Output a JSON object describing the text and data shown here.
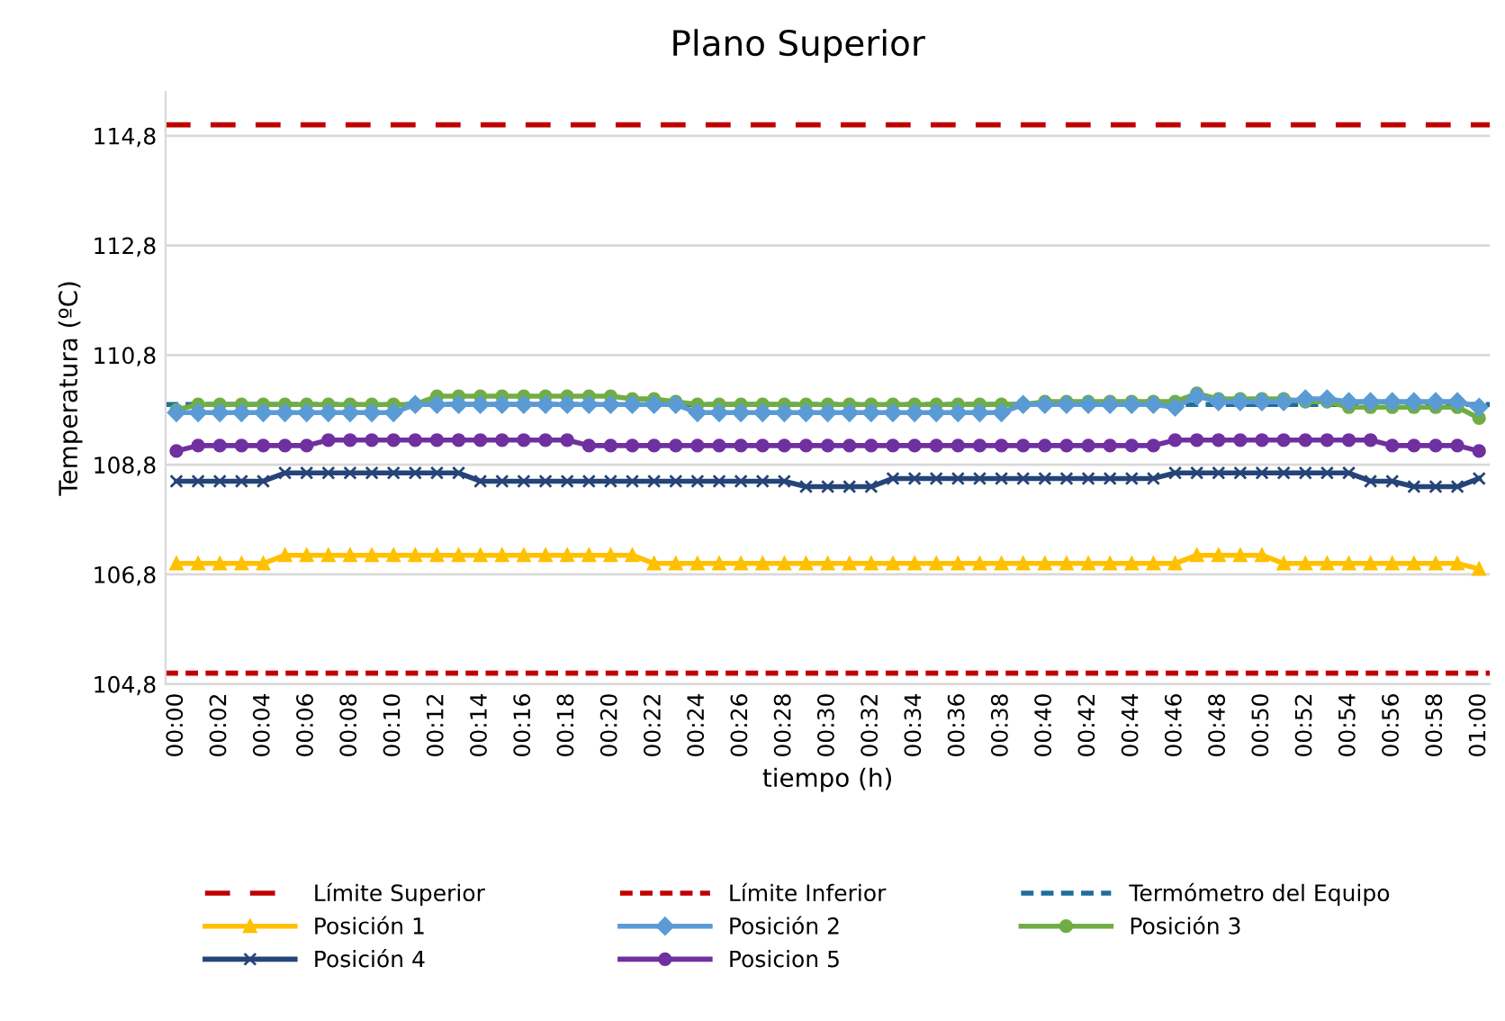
{
  "chart_data": {
    "type": "line",
    "title": "Plano Superior",
    "xlabel": "tiempo (h)",
    "ylabel": "Temperatura (ºC)",
    "categories": [
      "00:00",
      null,
      "00:02",
      null,
      "00:04",
      null,
      "00:06",
      null,
      "00:08",
      null,
      "00:10",
      null,
      "00:12",
      null,
      "00:14",
      null,
      "00:16",
      null,
      "00:18",
      null,
      "00:20",
      null,
      "00:22",
      null,
      "00:24",
      null,
      "00:26",
      null,
      "00:28",
      null,
      "00:30",
      null,
      "00:32",
      null,
      "00:34",
      null,
      "00:36",
      null,
      "00:38",
      null,
      "00:40",
      null,
      "00:42",
      null,
      "00:44",
      null,
      "00:46",
      null,
      "00:48",
      null,
      "00:50",
      null,
      "00:52",
      null,
      "00:54",
      null,
      "00:56",
      null,
      "00:58",
      null,
      "01:00"
    ],
    "ylim": [
      104.8,
      115.6
    ],
    "yticks": [
      {
        "value": 104.8,
        "label": "104,8"
      },
      {
        "value": 106.8,
        "label": "106,8"
      },
      {
        "value": 108.8,
        "label": "108,8"
      },
      {
        "value": 110.8,
        "label": "110,8"
      },
      {
        "value": 112.8,
        "label": "112,8"
      },
      {
        "value": 114.8,
        "label": "114,8"
      }
    ],
    "grid": "y",
    "legend": "bottom",
    "ref_lines": [
      {
        "axis": "y",
        "value": 115.0,
        "label": "Límite Superior",
        "color": "#c00000",
        "line_style": "dashed"
      },
      {
        "axis": "y",
        "value": 105.0,
        "label": "Límite Inferior",
        "color": "#c00000",
        "line_style": "dotted"
      },
      {
        "axis": "y",
        "value": 109.9,
        "label": "Termómetro del Equipo",
        "color": "#1f6e9c",
        "line_style": "dotted"
      }
    ],
    "series": [
      {
        "name": "Posición 1",
        "color": "#ffc000",
        "marker": "triangle",
        "values": [
          107.0,
          107.0,
          107.0,
          107.0,
          107.0,
          107.15,
          107.15,
          107.15,
          107.15,
          107.15,
          107.15,
          107.15,
          107.15,
          107.15,
          107.15,
          107.15,
          107.15,
          107.15,
          107.15,
          107.15,
          107.15,
          107.15,
          107.0,
          107.0,
          107.0,
          107.0,
          107.0,
          107.0,
          107.0,
          107.0,
          107.0,
          107.0,
          107.0,
          107.0,
          107.0,
          107.0,
          107.0,
          107.0,
          107.0,
          107.0,
          107.0,
          107.0,
          107.0,
          107.0,
          107.0,
          107.0,
          107.0,
          107.15,
          107.15,
          107.15,
          107.15,
          107.0,
          107.0,
          107.0,
          107.0,
          107.0,
          107.0,
          107.0,
          107.0,
          107.0,
          106.9
        ]
      },
      {
        "name": "Posición 2",
        "color": "#5b9bd5",
        "marker": "diamond",
        "values": [
          109.75,
          109.75,
          109.75,
          109.75,
          109.75,
          109.75,
          109.75,
          109.75,
          109.75,
          109.75,
          109.75,
          109.9,
          109.9,
          109.9,
          109.9,
          109.9,
          109.9,
          109.9,
          109.9,
          109.9,
          109.9,
          109.9,
          109.9,
          109.9,
          109.75,
          109.75,
          109.75,
          109.75,
          109.75,
          109.75,
          109.75,
          109.75,
          109.75,
          109.75,
          109.75,
          109.75,
          109.75,
          109.75,
          109.75,
          109.9,
          109.9,
          109.9,
          109.9,
          109.9,
          109.9,
          109.9,
          109.85,
          110.05,
          109.95,
          109.95,
          109.95,
          109.95,
          110.0,
          110.0,
          109.95,
          109.95,
          109.95,
          109.95,
          109.95,
          109.95,
          109.85
        ]
      },
      {
        "name": "Posición 3",
        "color": "#70ad47",
        "marker": "circle",
        "values": [
          109.8,
          109.9,
          109.9,
          109.9,
          109.9,
          109.9,
          109.9,
          109.9,
          109.9,
          109.9,
          109.9,
          109.9,
          110.05,
          110.05,
          110.05,
          110.05,
          110.05,
          110.05,
          110.05,
          110.05,
          110.05,
          110.0,
          110.0,
          109.95,
          109.9,
          109.9,
          109.9,
          109.9,
          109.9,
          109.9,
          109.9,
          109.9,
          109.9,
          109.9,
          109.9,
          109.9,
          109.9,
          109.9,
          109.9,
          109.9,
          109.95,
          109.95,
          109.95,
          109.95,
          109.95,
          109.95,
          109.95,
          110.1,
          110.0,
          110.0,
          110.0,
          110.0,
          109.95,
          109.95,
          109.85,
          109.85,
          109.85,
          109.85,
          109.85,
          109.85,
          109.65
        ]
      },
      {
        "name": "Posición 4",
        "color": "#264478",
        "marker": "cross",
        "values": [
          108.5,
          108.5,
          108.5,
          108.5,
          108.5,
          108.65,
          108.65,
          108.65,
          108.65,
          108.65,
          108.65,
          108.65,
          108.65,
          108.65,
          108.5,
          108.5,
          108.5,
          108.5,
          108.5,
          108.5,
          108.5,
          108.5,
          108.5,
          108.5,
          108.5,
          108.5,
          108.5,
          108.5,
          108.5,
          108.4,
          108.4,
          108.4,
          108.4,
          108.55,
          108.55,
          108.55,
          108.55,
          108.55,
          108.55,
          108.55,
          108.55,
          108.55,
          108.55,
          108.55,
          108.55,
          108.55,
          108.65,
          108.65,
          108.65,
          108.65,
          108.65,
          108.65,
          108.65,
          108.65,
          108.65,
          108.5,
          108.5,
          108.4,
          108.4,
          108.4,
          108.55
        ]
      },
      {
        "name": "Posicion 5",
        "color": "#7030a0",
        "marker": "circle",
        "values": [
          109.05,
          109.15,
          109.15,
          109.15,
          109.15,
          109.15,
          109.15,
          109.25,
          109.25,
          109.25,
          109.25,
          109.25,
          109.25,
          109.25,
          109.25,
          109.25,
          109.25,
          109.25,
          109.25,
          109.15,
          109.15,
          109.15,
          109.15,
          109.15,
          109.15,
          109.15,
          109.15,
          109.15,
          109.15,
          109.15,
          109.15,
          109.15,
          109.15,
          109.15,
          109.15,
          109.15,
          109.15,
          109.15,
          109.15,
          109.15,
          109.15,
          109.15,
          109.15,
          109.15,
          109.15,
          109.15,
          109.25,
          109.25,
          109.25,
          109.25,
          109.25,
          109.25,
          109.25,
          109.25,
          109.25,
          109.25,
          109.15,
          109.15,
          109.15,
          109.15,
          109.05
        ]
      }
    ]
  }
}
